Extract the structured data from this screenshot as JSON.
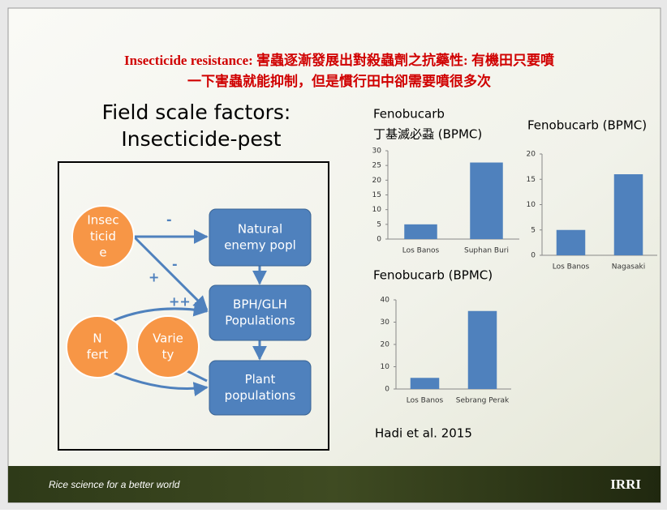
{
  "slide": {
    "title_lines": [
      "Insecticide resistance: 害蟲逐漸發展出對殺蟲劑之抗藥性: 有機田只要噴",
      "一下害蟲就能抑制，但是慣行田中卻需要噴很多次"
    ],
    "heading_lines": [
      "Field scale factors:",
      "Insecticide-pest"
    ],
    "diagram": {
      "nodes": [
        {
          "lines": [
            "Insec",
            "ticid",
            "e"
          ]
        },
        {
          "lines": [
            "N",
            "fert"
          ]
        },
        {
          "lines": [
            "Varie",
            "ty"
          ]
        },
        {
          "lines": [
            "Natural",
            "enemy popl"
          ]
        },
        {
          "lines": [
            "BPH/GLH",
            "Populations"
          ]
        },
        {
          "lines": [
            "Plant",
            "populations"
          ]
        }
      ],
      "edge_labels": [
        "-",
        "-",
        "+",
        "++"
      ]
    },
    "citation": "Hadi et al. 2015",
    "footer": "Rice science for a better world",
    "logo": "IRRI"
  },
  "chart_data": [
    {
      "type": "bar",
      "title": "Fenobucarb",
      "subtitle": "丁基滅必蝨 (BPMC)",
      "categories": [
        "Los Banos",
        "Suphan Buri"
      ],
      "values": [
        5,
        26
      ],
      "color": "#4f81bd",
      "ylim": [
        0,
        30
      ],
      "yticks": [
        0,
        5,
        10,
        15,
        20,
        25,
        30
      ]
    },
    {
      "type": "bar",
      "title": "Fenobucarb (BPMC)",
      "categories": [
        "Los Banos",
        "Nagasaki"
      ],
      "values": [
        5,
        16
      ],
      "color": "#4f81bd",
      "ylim": [
        0,
        20
      ],
      "yticks": [
        0,
        5,
        10,
        15,
        20
      ]
    },
    {
      "type": "bar",
      "title": "Fenobucarb (BPMC)",
      "categories": [
        "Los Banos",
        "Sebrang Perak"
      ],
      "values": [
        5,
        35
      ],
      "color": "#4f81bd",
      "ylim": [
        0,
        40
      ],
      "yticks": [
        0,
        10,
        20,
        30,
        40
      ]
    }
  ]
}
